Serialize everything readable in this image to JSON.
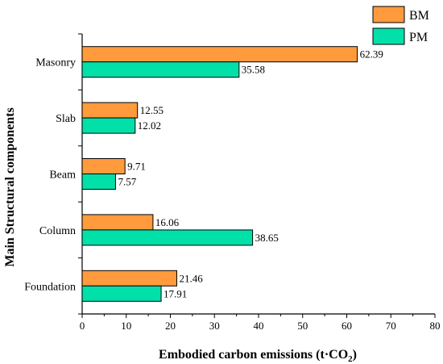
{
  "chart_data": {
    "type": "bar",
    "orientation": "horizontal",
    "categories": [
      "Masonry",
      "Slab",
      "Beam",
      "Column",
      "Foundation"
    ],
    "series": [
      {
        "name": "BM",
        "color": "#ff9a3d",
        "values": [
          62.39,
          12.55,
          9.71,
          16.06,
          21.46
        ],
        "labels": [
          "62.39",
          "12.55",
          "9.71",
          "16.06",
          "21.46"
        ]
      },
      {
        "name": "PM",
        "color": "#00e0a8",
        "values": [
          35.58,
          12.02,
          7.57,
          38.65,
          17.91
        ],
        "labels": [
          "35.58",
          "12.02",
          "7.57",
          "38.65",
          "17.91"
        ]
      }
    ],
    "xlabel": "Embodied carbon emissions (t·CO",
    "xlabel_sub": "2",
    "xlabel_close": ")",
    "ylabel": "Main Structural components",
    "xlim": [
      0,
      80
    ],
    "xticks": [
      "0",
      "10",
      "20",
      "30",
      "40",
      "50",
      "60",
      "70",
      "80"
    ],
    "grid": false,
    "legend_position": "top-right"
  }
}
